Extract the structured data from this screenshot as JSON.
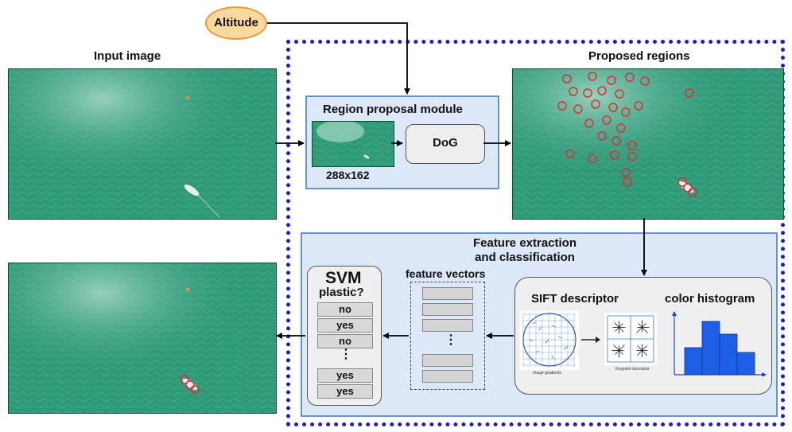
{
  "altitude_label": "Altitude",
  "input_image_title": "Input image",
  "proposed_regions_title": "Proposed regions",
  "region_proposal": {
    "title": "Region proposal module",
    "resolution": "288x162",
    "dog_label": "DoG"
  },
  "feature_module": {
    "title_line1": "Feature extraction",
    "title_line2": "and classification",
    "feature_vectors_label": "feature vectors",
    "sift_label": "SIFT descriptor",
    "color_hist_label": "color histogram",
    "image_gradients_caption": "Image gradients",
    "keypoint_descriptor_caption": "Keypoint descriptor",
    "ellipsis": "⋮"
  },
  "svm": {
    "title": "SVM",
    "subtitle": "plastic?",
    "rows": [
      "no",
      "yes",
      "no",
      "⋮",
      "yes",
      "yes"
    ]
  },
  "colors": {
    "water": "#2f9a78",
    "module_fill": "#dce8f8",
    "module_border": "#6a93c8",
    "dashed_border": "#1c1cc8",
    "altitude_fill": "#fdd9a0",
    "altitude_border": "#e89a3c",
    "histogram_bar": "#1f5fe6",
    "region_circle": "#d9303a"
  }
}
